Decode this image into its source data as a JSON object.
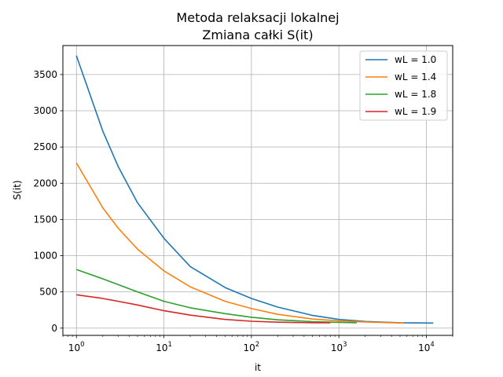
{
  "chart_data": {
    "type": "line",
    "title": [
      "Metoda relaksacji lokalnej",
      "Zmiana całki S(it)"
    ],
    "xlabel": "it",
    "ylabel": "S(it)",
    "xscale": "log",
    "xlim": [
      0.7,
      20000
    ],
    "ylim": [
      -100,
      3900
    ],
    "xticks": [
      {
        "base": "10",
        "exp": "0",
        "value": 1
      },
      {
        "base": "10",
        "exp": "1",
        "value": 10
      },
      {
        "base": "10",
        "exp": "2",
        "value": 100
      },
      {
        "base": "10",
        "exp": "3",
        "value": 1000
      },
      {
        "base": "10",
        "exp": "4",
        "value": 10000
      }
    ],
    "yticks": [
      0,
      500,
      1000,
      1500,
      2000,
      2500,
      3000,
      3500
    ],
    "grid": true,
    "legend_position": "top-right",
    "series": [
      {
        "name": "wL = 1.0",
        "color": "#1f77b4",
        "points": [
          [
            1,
            3760
          ],
          [
            2,
            2720
          ],
          [
            3,
            2230
          ],
          [
            5,
            1730
          ],
          [
            10,
            1240
          ],
          [
            20,
            850
          ],
          [
            50,
            560
          ],
          [
            100,
            410
          ],
          [
            200,
            290
          ],
          [
            500,
            175
          ],
          [
            1000,
            120
          ],
          [
            2000,
            92
          ],
          [
            5000,
            75
          ],
          [
            12000,
            70
          ]
        ]
      },
      {
        "name": "wL = 1.4",
        "color": "#ff7f0e",
        "points": [
          [
            1,
            2280
          ],
          [
            2,
            1660
          ],
          [
            3,
            1380
          ],
          [
            5,
            1090
          ],
          [
            10,
            790
          ],
          [
            20,
            570
          ],
          [
            50,
            370
          ],
          [
            100,
            270
          ],
          [
            200,
            190
          ],
          [
            500,
            125
          ],
          [
            1000,
            100
          ],
          [
            2000,
            85
          ],
          [
            5500,
            70
          ]
        ]
      },
      {
        "name": "wL = 1.8",
        "color": "#2ca02c",
        "points": [
          [
            1,
            810
          ],
          [
            2,
            680
          ],
          [
            3,
            600
          ],
          [
            5,
            500
          ],
          [
            10,
            370
          ],
          [
            20,
            280
          ],
          [
            50,
            200
          ],
          [
            100,
            150
          ],
          [
            200,
            115
          ],
          [
            500,
            90
          ],
          [
            1000,
            80
          ],
          [
            1600,
            75
          ]
        ]
      },
      {
        "name": "wL = 1.9",
        "color": "#d62728",
        "points": [
          [
            1,
            460
          ],
          [
            2,
            410
          ],
          [
            3,
            370
          ],
          [
            5,
            320
          ],
          [
            10,
            240
          ],
          [
            20,
            180
          ],
          [
            50,
            120
          ],
          [
            100,
            95
          ],
          [
            200,
            82
          ],
          [
            500,
            75
          ],
          [
            800,
            73
          ]
        ]
      }
    ]
  }
}
